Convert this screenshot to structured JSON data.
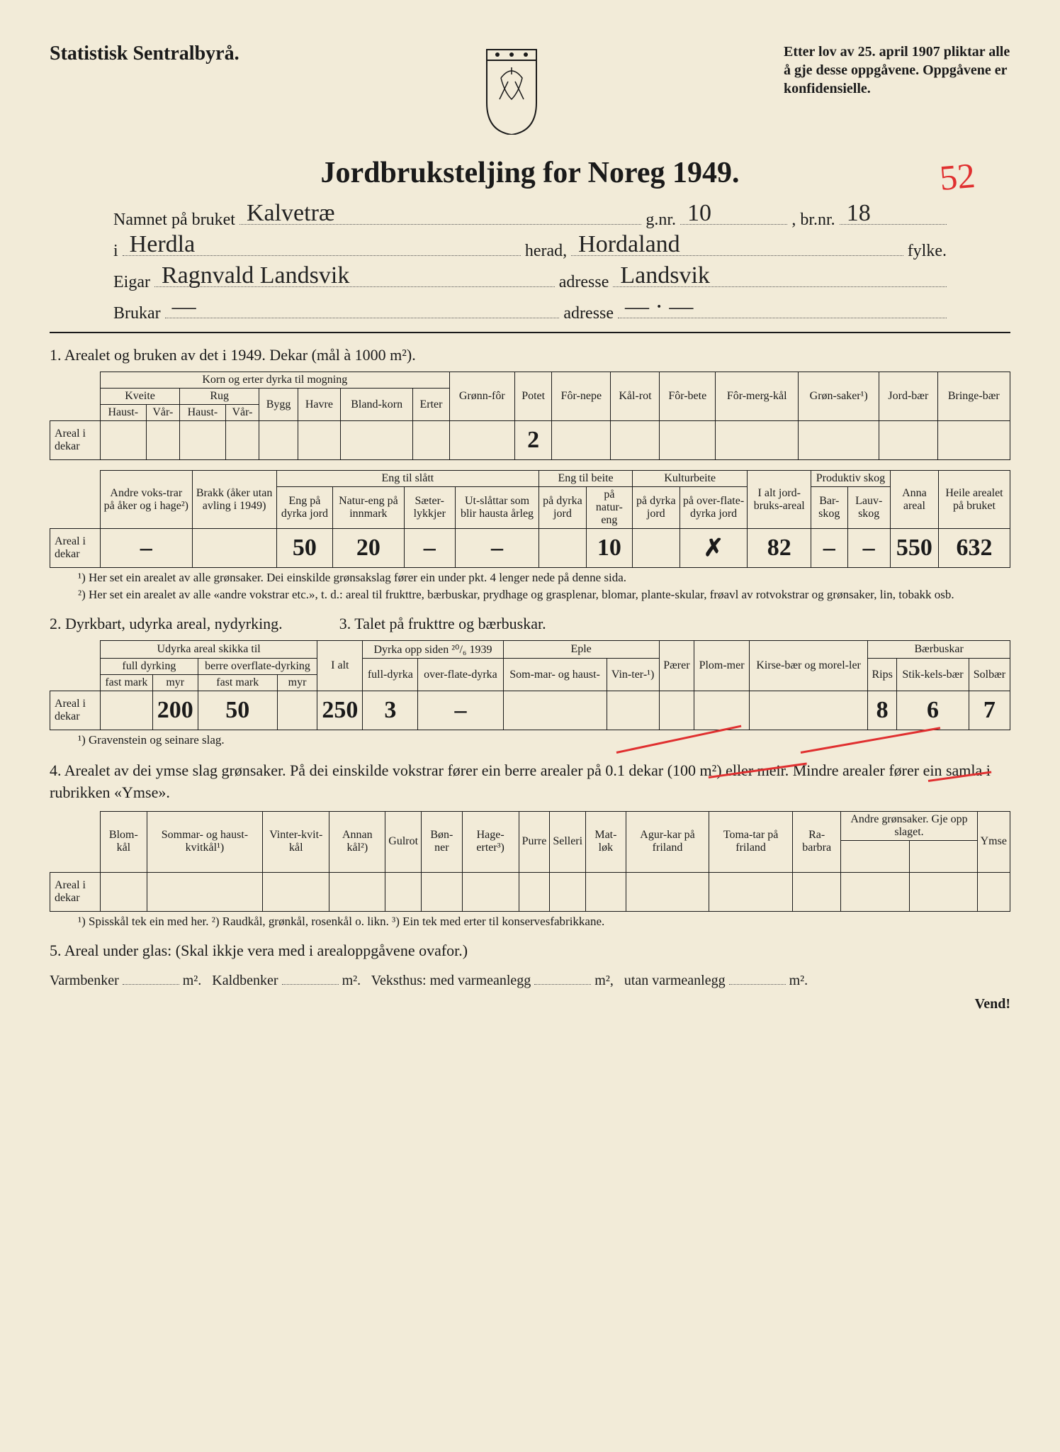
{
  "header": {
    "agency": "Statistisk Sentralbyrå.",
    "law_text": "Etter lov av 25. april 1907 pliktar alle å gje desse oppgåvene. Oppgåvene er konfidensielle.",
    "red_annotation": "52"
  },
  "title": "Jordbruksteljing for Noreg 1949.",
  "form": {
    "namnet_label": "Namnet på bruket",
    "namnet_value": "Kalvetræ",
    "gnr_label": "g.nr.",
    "gnr_value": "10",
    "brnr_label": ", br.nr.",
    "brnr_value": "18",
    "i_label": "i",
    "i_value": "Herdla",
    "herad_label": "herad,",
    "herad_value": "Hordaland",
    "fylke_label": "fylke.",
    "eigar_label": "Eigar",
    "eigar_value": "Ragnvald Landsvik",
    "adresse1_label": "adresse",
    "adresse1_value": "Landsvik",
    "brukar_label": "Brukar",
    "brukar_value": "—",
    "adresse2_label": "adresse",
    "adresse2_value": "— · —"
  },
  "section1": {
    "heading": "1.  Arealet og bruken av det i 1949.  Dekar (mål à 1000 m²).",
    "table1": {
      "group_korn": "Korn og erter dyrka til mogning",
      "kveite": "Kveite",
      "rug": "Rug",
      "haust": "Haust-",
      "vaar": "Vår-",
      "bygg": "Bygg",
      "havre": "Havre",
      "blandkorn": "Bland-korn",
      "erter": "Erter",
      "gronnfor": "Grønn-fôr",
      "potet": "Potet",
      "fornepe": "Fôr-nepe",
      "kalrot": "Kål-rot",
      "forbete": "Fôr-bete",
      "formergkal": "Fôr-merg-kål",
      "gronsaker": "Grøn-saker¹)",
      "jordbaer": "Jord-bær",
      "bringebaer": "Bringe-bær",
      "row_label": "Areal i dekar",
      "values": [
        "",
        "",
        "",
        "",
        "",
        "",
        "",
        "",
        "",
        "2",
        "",
        "",
        "",
        "",
        "",
        "",
        ""
      ]
    },
    "table2": {
      "andre_vokstrar": "Andre voks-trar på åker og i hage²)",
      "brakk": "Brakk (åker utan avling i 1949)",
      "eng_slaatt": "Eng til slått",
      "eng_paa_dyrka": "Eng på dyrka jord",
      "natureng": "Natur-eng på innmark",
      "saeterlokkjer": "Sæter-lykkjer",
      "utslattar": "Ut-slåttar som blir hausta årleg",
      "eng_beite": "Eng til beite",
      "paa_dyrka_jord": "på dyrka jord",
      "paa_natureng": "på natur-eng",
      "kulturbeite": "Kulturbeite",
      "paa_dyrka_jord2": "på dyrka jord",
      "paa_overfl": "på over-flate-dyrka jord",
      "ialt_jordbruk": "I alt jord-bruks-areal",
      "produktiv_skog": "Produktiv skog",
      "barskog": "Bar-skog",
      "lauvskog": "Lauv-skog",
      "anna_areal": "Anna areal",
      "heile_areal": "Heile arealet på bruket",
      "row_label": "Areal i dekar",
      "values": [
        "–",
        "",
        "50",
        "20",
        "–",
        "–",
        "",
        "10",
        "",
        "✗",
        "82",
        "–",
        "–",
        "550",
        "632"
      ]
    },
    "footnote1": "¹) Her set ein arealet av alle grønsaker.  Dei einskilde grønsakslag fører ein under pkt. 4 lenger nede på denne sida.",
    "footnote2": "²) Her set ein arealet av alle «andre vokstrar etc.», t. d.: areal til frukttre, bærbuskar, prydhage og grasplenar, blomar, plante-skular, frøavl av rotvokstrar og grønsaker, lin, tobakk osb."
  },
  "section2": {
    "heading_left": "2.  Dyrkbart, udyrka areal, nydyrking.",
    "heading_right": "3.  Talet på frukttre og bærbuskar.",
    "table": {
      "udyrka_group": "Udyrka areal skikka til",
      "full_dyrking": "full dyrking",
      "berre_overfl": "berre overflate-dyrking",
      "fast_mark": "fast mark",
      "myr": "myr",
      "ialt": "I alt",
      "dyrka_opp": "Dyrka opp siden ²⁰/₆ 1939",
      "fulldyrka": "full-dyrka",
      "overfl_dyrka": "over-flate-dyrka",
      "eple": "Eple",
      "sommar_haust": "Som-mar- og haust-",
      "vinter": "Vin-ter-¹)",
      "paerer": "Pærer",
      "plommer": "Plom-mer",
      "kirse_morel": "Kirse-bær og morel-ler",
      "baerbuskar": "Bærbuskar",
      "rips": "Rips",
      "stikkelsbaer": "Stik-kels-bær",
      "solbaer": "Solbær",
      "row_label": "Areal i dekar",
      "values": [
        "",
        "200",
        "50",
        "",
        "250",
        "3",
        "–",
        "",
        "",
        "",
        "",
        "",
        "8",
        "6",
        "7"
      ]
    },
    "footnote": "¹) Gravenstein og seinare slag."
  },
  "section4": {
    "heading": "4.  Arealet av dei ymse slag grønsaker.  På dei einskilde vokstrar fører ein berre arealer på 0.1 dekar (100 m²) eller meir.  Mindre arealer fører ein samla i rubrikken «Ymse».",
    "table": {
      "blomkal": "Blom-kål",
      "sommar_haust_kvitkal": "Sommar- og haust-kvitkål¹)",
      "vinterkvitkal": "Vinter-kvit-kål",
      "annan_kal": "Annan kål²)",
      "gulrot": "Gulrot",
      "bonner": "Bøn-ner",
      "hageerter": "Hage-erter³)",
      "purre": "Purre",
      "selleri": "Selleri",
      "matlok": "Mat-løk",
      "agurkar": "Agur-kar på friland",
      "tomater": "Toma-tar på friland",
      "rabarbra": "Ra-barbra",
      "andre_gronsaker": "Andre grønsaker. Gje opp slaget.",
      "ymse": "Ymse",
      "row_label": "Areal i dekar",
      "values": [
        "",
        "",
        "",
        "",
        "",
        "",
        "",
        "",
        "",
        "",
        "",
        "",
        "",
        "",
        "",
        ""
      ]
    },
    "footnote": "¹) Spisskål tek ein med her.  ²) Raudkål, grønkål, rosenkål o. likn.  ³) Ein tek med erter til konservesfabrikkane."
  },
  "section5": {
    "heading": "5.  Areal under glas:  (Skal ikkje vera med i arealoppgåvene ovafor.)",
    "line": {
      "varmbenker": "Varmbenker",
      "m2_1": "m².",
      "kaldbenker": "Kaldbenker",
      "m2_2": "m².",
      "veksthus": "Veksthus: med varmeanlegg",
      "m2_3": "m²,",
      "utan": "utan varmeanlegg",
      "m2_4": "m²."
    }
  },
  "vend": "Vend!",
  "styling": {
    "paper_bg": "#f2ebd8",
    "text_color": "#1a1a1a",
    "red_color": "#e03030",
    "handwriting_font": "Brush Script MT"
  }
}
